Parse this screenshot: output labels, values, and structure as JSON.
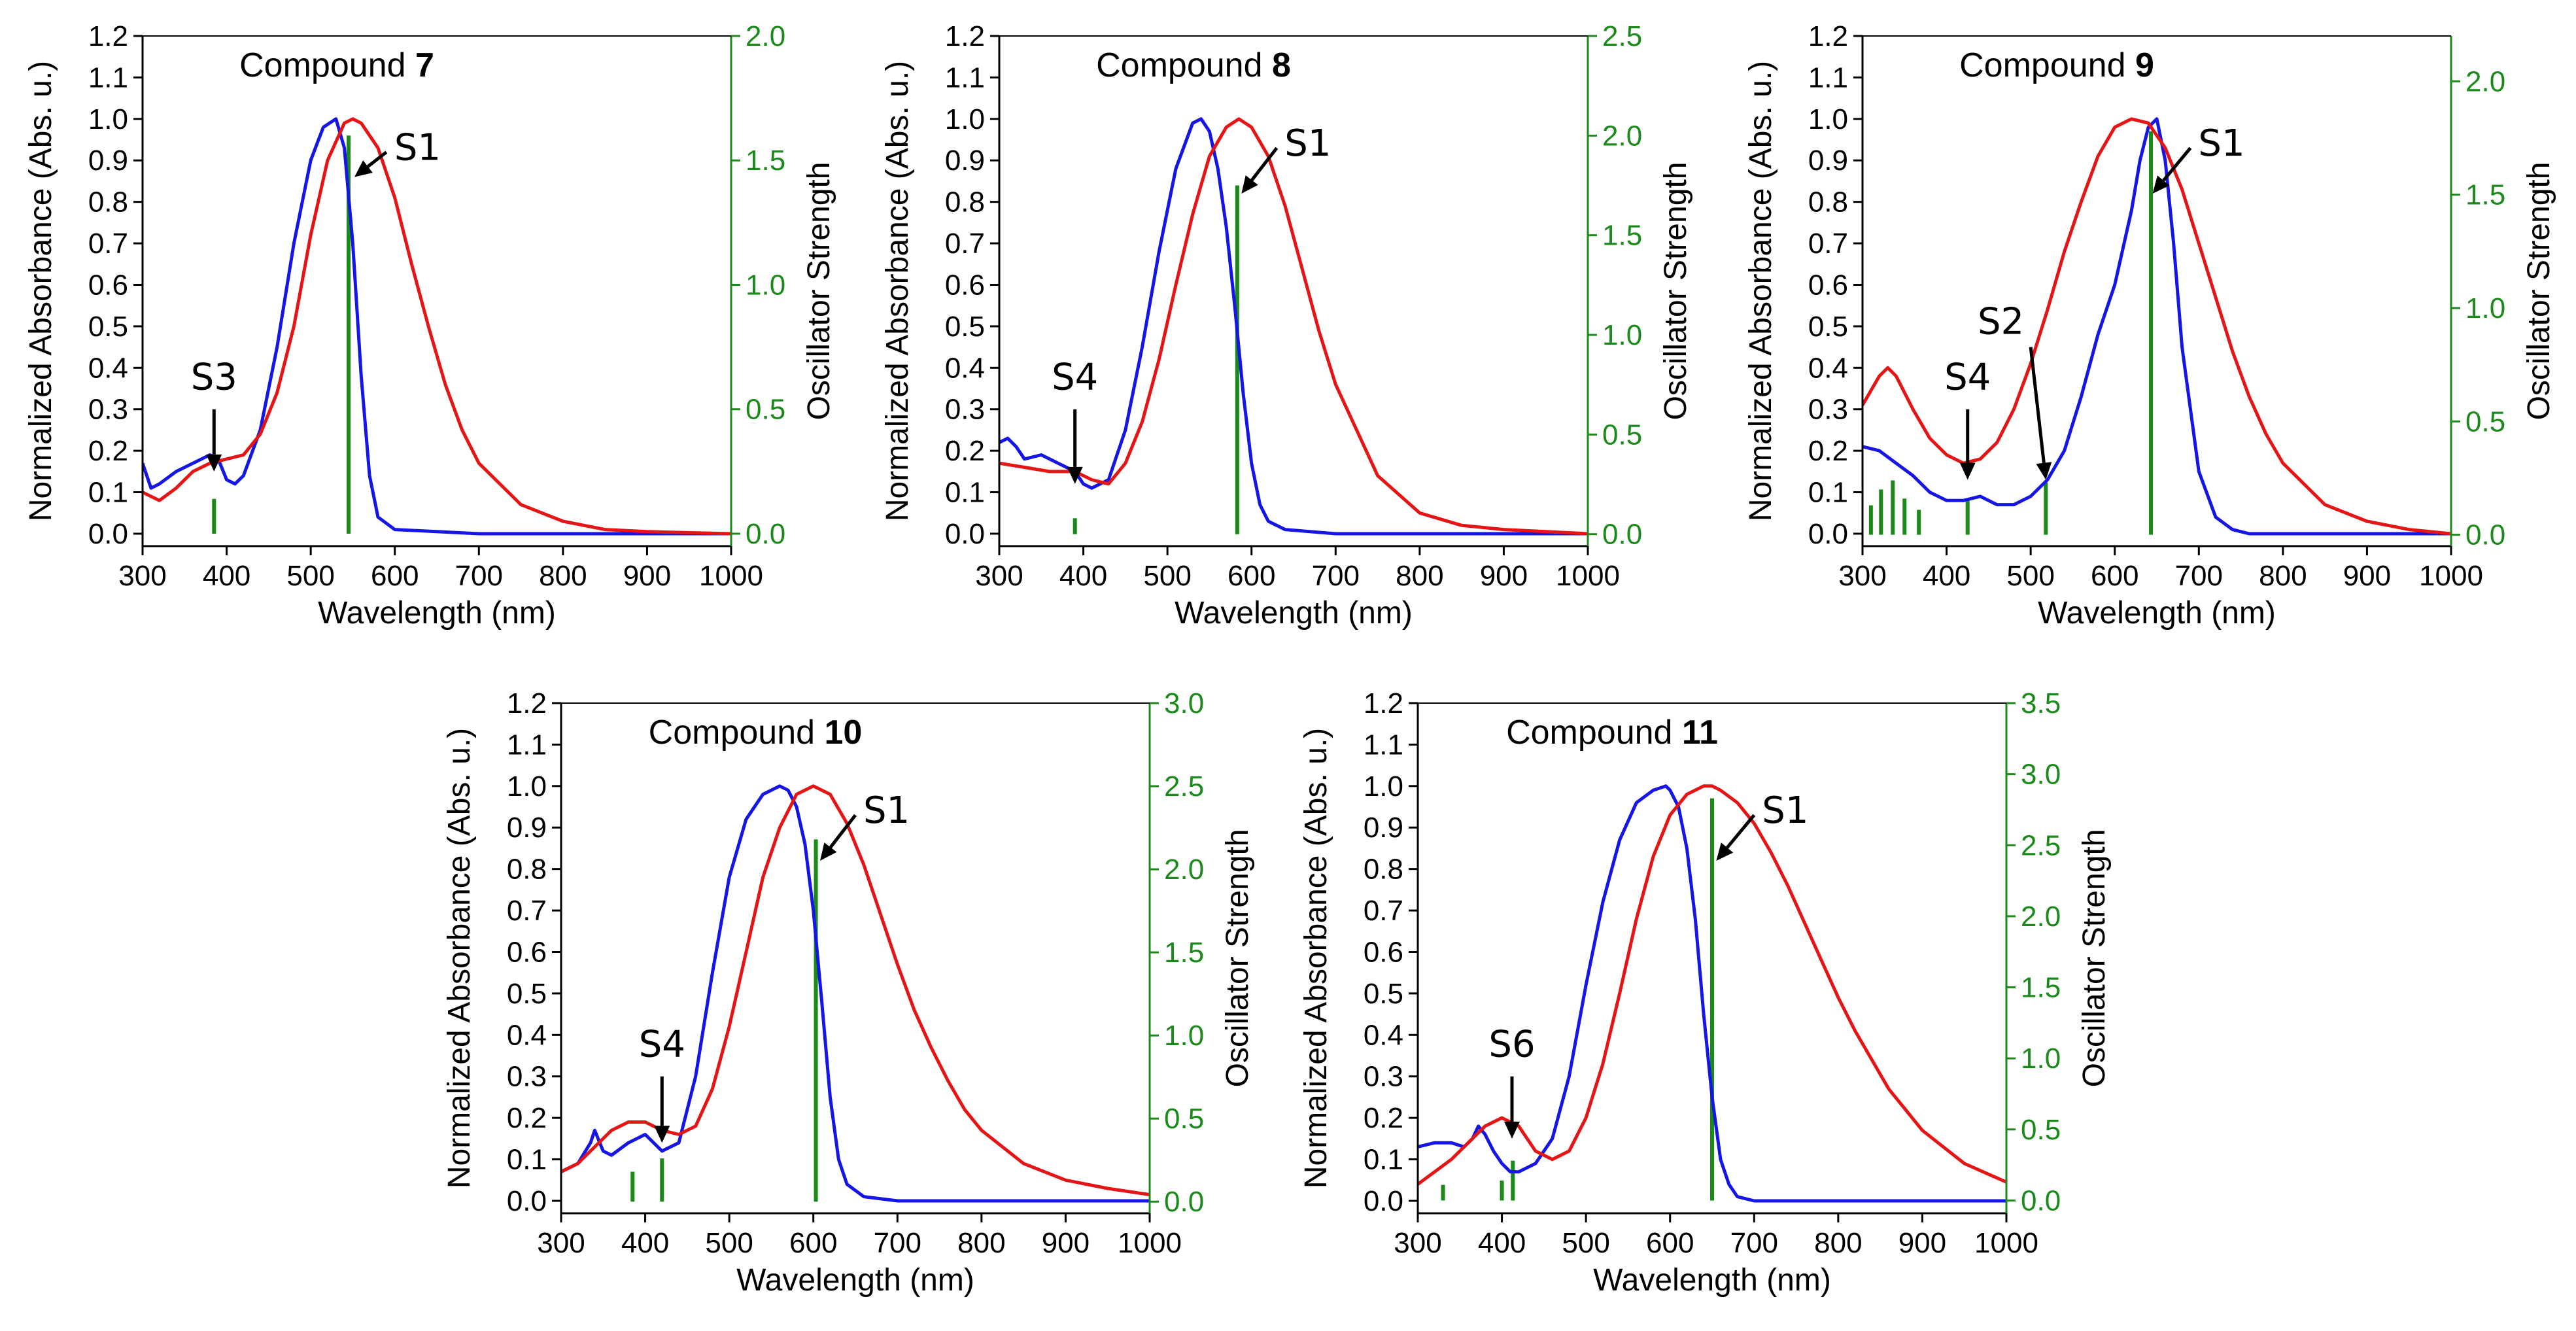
{
  "figure": {
    "background": "#ffffff"
  },
  "chart_data": [
    {
      "type": "line",
      "title_prefix": "Compound ",
      "title_bold": "7",
      "xlabel": "Wavelength (nm)",
      "ylabel": "Normalized Absorbance (Abs. u.)",
      "y2label": "Oscillator Strength",
      "xlim": [
        300,
        1000
      ],
      "ylim": [
        -0.03,
        1.2
      ],
      "y2lim": [
        -0.05,
        2.0
      ],
      "xticks": [
        300,
        400,
        500,
        600,
        700,
        800,
        900,
        1000
      ],
      "yticks": [
        0.0,
        0.1,
        0.2,
        0.3,
        0.4,
        0.5,
        0.6,
        0.7,
        0.8,
        0.9,
        1.0,
        1.1,
        1.2
      ],
      "y2ticks": [
        0.0,
        0.5,
        1.0,
        1.5,
        2.0
      ],
      "series": [
        {
          "name": "blue",
          "color": "#1515e6",
          "x": [
            300,
            310,
            320,
            340,
            360,
            380,
            390,
            400,
            410,
            420,
            440,
            460,
            480,
            500,
            515,
            530,
            540,
            550,
            560,
            570,
            580,
            600,
            700,
            1000
          ],
          "y": [
            0.17,
            0.11,
            0.12,
            0.15,
            0.17,
            0.19,
            0.18,
            0.13,
            0.12,
            0.14,
            0.25,
            0.45,
            0.7,
            0.9,
            0.98,
            1.0,
            0.93,
            0.7,
            0.38,
            0.14,
            0.04,
            0.01,
            0.0,
            0.0
          ]
        },
        {
          "name": "red",
          "color": "#e61515",
          "x": [
            300,
            320,
            340,
            360,
            380,
            400,
            420,
            440,
            460,
            480,
            500,
            520,
            540,
            550,
            560,
            580,
            600,
            620,
            640,
            660,
            680,
            700,
            750,
            800,
            850,
            900,
            1000
          ],
          "y": [
            0.1,
            0.08,
            0.11,
            0.15,
            0.17,
            0.18,
            0.19,
            0.24,
            0.34,
            0.5,
            0.72,
            0.9,
            0.99,
            1.0,
            0.99,
            0.93,
            0.81,
            0.65,
            0.5,
            0.36,
            0.25,
            0.17,
            0.07,
            0.03,
            0.01,
            0.005,
            0.0
          ]
        }
      ],
      "transitions": [
        {
          "x": 385,
          "f": 0.14
        },
        {
          "x": 545,
          "f": 1.6
        }
      ],
      "annotations": [
        {
          "label": "S3",
          "x": 385,
          "y": 0.3,
          "tx": 385,
          "ty": 0.15
        },
        {
          "label": "S1",
          "x": 590,
          "y": 0.92,
          "tx": 552,
          "ty": 0.86
        }
      ]
    },
    {
      "type": "line",
      "title_prefix": "Compound ",
      "title_bold": "8",
      "xlabel": "Wavelength (nm)",
      "ylabel": "Normalized Absorbance (Abs. u.)",
      "y2label": "Oscillator Strength",
      "xlim": [
        300,
        1000
      ],
      "ylim": [
        -0.03,
        1.2
      ],
      "y2lim": [
        -0.06,
        2.5
      ],
      "xticks": [
        300,
        400,
        500,
        600,
        700,
        800,
        900,
        1000
      ],
      "yticks": [
        0.0,
        0.1,
        0.2,
        0.3,
        0.4,
        0.5,
        0.6,
        0.7,
        0.8,
        0.9,
        1.0,
        1.1,
        1.2
      ],
      "y2ticks": [
        0.0,
        0.5,
        1.0,
        1.5,
        2.0,
        2.5
      ],
      "series": [
        {
          "name": "blue",
          "color": "#1515e6",
          "x": [
            300,
            310,
            320,
            330,
            350,
            370,
            390,
            400,
            410,
            430,
            450,
            470,
            490,
            510,
            530,
            540,
            550,
            560,
            570,
            580,
            590,
            600,
            610,
            620,
            640,
            700,
            1000
          ],
          "y": [
            0.22,
            0.23,
            0.21,
            0.18,
            0.19,
            0.17,
            0.15,
            0.12,
            0.11,
            0.13,
            0.25,
            0.45,
            0.68,
            0.88,
            0.99,
            1.0,
            0.97,
            0.88,
            0.74,
            0.55,
            0.34,
            0.17,
            0.07,
            0.03,
            0.01,
            0.0,
            0.0
          ]
        },
        {
          "name": "red",
          "color": "#e61515",
          "x": [
            300,
            330,
            360,
            390,
            410,
            430,
            450,
            470,
            490,
            510,
            530,
            550,
            570,
            585,
            600,
            620,
            640,
            660,
            680,
            700,
            750,
            800,
            850,
            900,
            1000
          ],
          "y": [
            0.17,
            0.16,
            0.15,
            0.15,
            0.13,
            0.12,
            0.17,
            0.27,
            0.42,
            0.6,
            0.77,
            0.91,
            0.98,
            1.0,
            0.98,
            0.91,
            0.79,
            0.64,
            0.49,
            0.36,
            0.14,
            0.05,
            0.02,
            0.01,
            0.0
          ]
        }
      ],
      "transitions": [
        {
          "x": 390,
          "f": 0.08
        },
        {
          "x": 583,
          "f": 1.75
        }
      ],
      "annotations": [
        {
          "label": "S4",
          "x": 390,
          "y": 0.3,
          "tx": 390,
          "ty": 0.12
        },
        {
          "label": "S1",
          "x": 630,
          "y": 0.93,
          "tx": 588,
          "ty": 0.82
        }
      ]
    },
    {
      "type": "line",
      "title_prefix": "Compound ",
      "title_bold": "9",
      "xlabel": "Wavelength (nm)",
      "ylabel": "Normalized Absorbance (Abs. u.)",
      "y2label": "Oscillator Strength",
      "xlim": [
        300,
        1000
      ],
      "ylim": [
        -0.03,
        1.2
      ],
      "y2lim": [
        -0.05,
        2.2
      ],
      "xticks": [
        300,
        400,
        500,
        600,
        700,
        800,
        900,
        1000
      ],
      "yticks": [
        0.0,
        0.1,
        0.2,
        0.3,
        0.4,
        0.5,
        0.6,
        0.7,
        0.8,
        0.9,
        1.0,
        1.1,
        1.2
      ],
      "y2ticks": [
        0.0,
        0.5,
        1.0,
        1.5,
        2.0
      ],
      "series": [
        {
          "name": "blue",
          "color": "#1515e6",
          "x": [
            300,
            320,
            340,
            360,
            380,
            400,
            420,
            440,
            460,
            480,
            500,
            520,
            540,
            560,
            580,
            600,
            620,
            630,
            640,
            650,
            660,
            670,
            680,
            700,
            720,
            740,
            760,
            1000
          ],
          "y": [
            0.21,
            0.2,
            0.17,
            0.14,
            0.1,
            0.08,
            0.08,
            0.09,
            0.07,
            0.07,
            0.09,
            0.13,
            0.2,
            0.33,
            0.48,
            0.6,
            0.78,
            0.9,
            0.98,
            1.0,
            0.9,
            0.7,
            0.45,
            0.15,
            0.04,
            0.01,
            0.0,
            0.0
          ]
        },
        {
          "name": "red",
          "color": "#e61515",
          "x": [
            300,
            320,
            330,
            340,
            360,
            380,
            400,
            420,
            440,
            460,
            480,
            500,
            520,
            540,
            560,
            580,
            600,
            620,
            640,
            660,
            680,
            700,
            720,
            740,
            760,
            780,
            800,
            850,
            900,
            950,
            1000
          ],
          "y": [
            0.31,
            0.38,
            0.4,
            0.38,
            0.3,
            0.23,
            0.19,
            0.17,
            0.18,
            0.22,
            0.3,
            0.41,
            0.54,
            0.68,
            0.8,
            0.91,
            0.98,
            1.0,
            0.99,
            0.93,
            0.83,
            0.7,
            0.57,
            0.44,
            0.33,
            0.24,
            0.17,
            0.07,
            0.03,
            0.01,
            0.0
          ]
        }
      ],
      "transitions": [
        {
          "x": 310,
          "f": 0.13
        },
        {
          "x": 322,
          "f": 0.2
        },
        {
          "x": 336,
          "f": 0.24
        },
        {
          "x": 350,
          "f": 0.16
        },
        {
          "x": 367,
          "f": 0.11
        },
        {
          "x": 425,
          "f": 0.15
        },
        {
          "x": 518,
          "f": 0.23
        },
        {
          "x": 643,
          "f": 1.78
        }
      ],
      "annotations": [
        {
          "label": "S4",
          "x": 425,
          "y": 0.3,
          "tx": 425,
          "ty": 0.13
        },
        {
          "label": "S2",
          "x": 500,
          "y": 0.45,
          "tx": 518,
          "ty": 0.13
        },
        {
          "label": "S1",
          "x": 690,
          "y": 0.93,
          "tx": 645,
          "ty": 0.82
        }
      ]
    },
    {
      "type": "line",
      "title_prefix": "Compound ",
      "title_bold": "10",
      "xlabel": "Wavelength (nm)",
      "ylabel": "Normalized Absorbance (Abs. u.)",
      "y2label": "Oscillator Strength",
      "xlim": [
        300,
        1000
      ],
      "ylim": [
        -0.03,
        1.2
      ],
      "y2lim": [
        -0.07,
        3.0
      ],
      "xticks": [
        300,
        400,
        500,
        600,
        700,
        800,
        900,
        1000
      ],
      "yticks": [
        0.0,
        0.1,
        0.2,
        0.3,
        0.4,
        0.5,
        0.6,
        0.7,
        0.8,
        0.9,
        1.0,
        1.1,
        1.2
      ],
      "y2ticks": [
        0.0,
        0.5,
        1.0,
        1.5,
        2.0,
        2.5,
        3.0
      ],
      "series": [
        {
          "name": "blue",
          "color": "#1515e6",
          "x": [
            300,
            320,
            335,
            340,
            350,
            360,
            380,
            400,
            420,
            440,
            460,
            480,
            500,
            520,
            540,
            560,
            570,
            580,
            590,
            600,
            610,
            620,
            630,
            640,
            660,
            700,
            1000
          ],
          "y": [
            0.07,
            0.09,
            0.14,
            0.17,
            0.12,
            0.11,
            0.14,
            0.16,
            0.12,
            0.14,
            0.3,
            0.55,
            0.78,
            0.92,
            0.98,
            1.0,
            0.99,
            0.95,
            0.86,
            0.7,
            0.48,
            0.25,
            0.1,
            0.04,
            0.01,
            0.0,
            0.0
          ]
        },
        {
          "name": "red",
          "color": "#e61515",
          "x": [
            300,
            320,
            340,
            360,
            380,
            400,
            420,
            440,
            460,
            480,
            500,
            520,
            540,
            560,
            580,
            600,
            620,
            640,
            660,
            680,
            700,
            720,
            740,
            760,
            780,
            800,
            850,
            900,
            950,
            1000
          ],
          "y": [
            0.07,
            0.09,
            0.13,
            0.17,
            0.19,
            0.19,
            0.17,
            0.16,
            0.18,
            0.27,
            0.42,
            0.6,
            0.78,
            0.9,
            0.98,
            1.0,
            0.98,
            0.91,
            0.81,
            0.69,
            0.57,
            0.46,
            0.37,
            0.29,
            0.22,
            0.17,
            0.09,
            0.05,
            0.03,
            0.015
          ]
        }
      ],
      "transitions": [
        {
          "x": 385,
          "f": 0.18
        },
        {
          "x": 420,
          "f": 0.26
        },
        {
          "x": 603,
          "f": 2.18
        }
      ],
      "annotations": [
        {
          "label": "S4",
          "x": 420,
          "y": 0.3,
          "tx": 420,
          "ty": 0.14
        },
        {
          "label": "S1",
          "x": 650,
          "y": 0.93,
          "tx": 608,
          "ty": 0.82
        }
      ]
    },
    {
      "type": "line",
      "title_prefix": "Compound ",
      "title_bold": "11",
      "xlabel": "Wavelength (nm)",
      "ylabel": "Normalized Absorbance (Abs. u.)",
      "y2label": "Oscillator Strength",
      "xlim": [
        300,
        1000
      ],
      "ylim": [
        -0.03,
        1.2
      ],
      "y2lim": [
        -0.09,
        3.5
      ],
      "xticks": [
        300,
        400,
        500,
        600,
        700,
        800,
        900,
        1000
      ],
      "yticks": [
        0.0,
        0.1,
        0.2,
        0.3,
        0.4,
        0.5,
        0.6,
        0.7,
        0.8,
        0.9,
        1.0,
        1.1,
        1.2
      ],
      "y2ticks": [
        0.0,
        0.5,
        1.0,
        1.5,
        2.0,
        2.5,
        3.0,
        3.5
      ],
      "series": [
        {
          "name": "blue",
          "color": "#1515e6",
          "x": [
            300,
            320,
            340,
            355,
            365,
            372,
            380,
            390,
            400,
            410,
            420,
            440,
            460,
            480,
            500,
            520,
            540,
            560,
            580,
            595,
            600,
            610,
            620,
            630,
            640,
            650,
            660,
            670,
            680,
            700,
            1000
          ],
          "y": [
            0.13,
            0.14,
            0.14,
            0.13,
            0.15,
            0.18,
            0.16,
            0.12,
            0.09,
            0.07,
            0.07,
            0.09,
            0.15,
            0.3,
            0.52,
            0.72,
            0.87,
            0.96,
            0.99,
            1.0,
            0.99,
            0.95,
            0.85,
            0.68,
            0.45,
            0.25,
            0.1,
            0.04,
            0.01,
            0.0,
            0.0
          ]
        },
        {
          "name": "red",
          "color": "#e61515",
          "x": [
            300,
            320,
            340,
            360,
            380,
            400,
            420,
            440,
            460,
            480,
            500,
            520,
            540,
            560,
            580,
            600,
            620,
            640,
            650,
            660,
            680,
            700,
            720,
            740,
            760,
            780,
            800,
            820,
            840,
            860,
            880,
            900,
            950,
            1000
          ],
          "y": [
            0.04,
            0.07,
            0.1,
            0.14,
            0.18,
            0.2,
            0.18,
            0.12,
            0.1,
            0.12,
            0.2,
            0.33,
            0.5,
            0.68,
            0.83,
            0.93,
            0.98,
            1.0,
            1.0,
            0.99,
            0.96,
            0.91,
            0.84,
            0.76,
            0.67,
            0.58,
            0.49,
            0.41,
            0.34,
            0.27,
            0.22,
            0.17,
            0.09,
            0.045
          ]
        }
      ],
      "transitions": [
        {
          "x": 330,
          "f": 0.11
        },
        {
          "x": 400,
          "f": 0.14
        },
        {
          "x": 413,
          "f": 0.28
        },
        {
          "x": 650,
          "f": 2.83
        }
      ],
      "annotations": [
        {
          "label": "S6",
          "x": 412,
          "y": 0.3,
          "tx": 412,
          "ty": 0.15
        },
        {
          "label": "S1",
          "x": 700,
          "y": 0.93,
          "tx": 655,
          "ty": 0.82
        }
      ]
    }
  ]
}
